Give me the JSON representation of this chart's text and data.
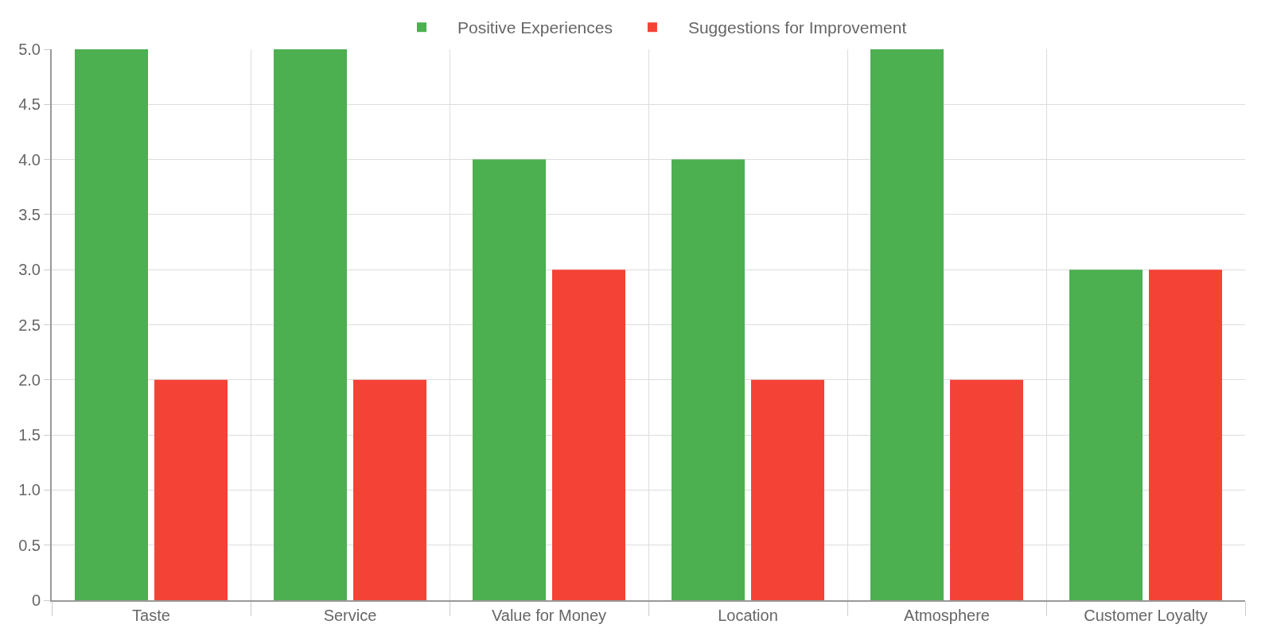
{
  "chart_data": {
    "type": "bar",
    "categories": [
      "Taste",
      "Service",
      "Value for Money",
      "Location",
      "Atmosphere",
      "Customer Loyalty"
    ],
    "series": [
      {
        "name": "Positive Experiences",
        "color": "#4caf50",
        "values": [
          5,
          5,
          4,
          4,
          5,
          3
        ]
      },
      {
        "name": "Suggestions for Improvement",
        "color": "#f44336",
        "values": [
          2,
          2,
          3,
          2,
          2,
          3
        ]
      }
    ],
    "ylim": [
      0,
      5
    ],
    "yticks": [
      0,
      {
        "value": 0.5,
        "label": "0.5"
      },
      {
        "value": 1,
        "label": "1.0"
      },
      {
        "value": 1.5,
        "label": "1.5"
      },
      {
        "value": 2,
        "label": "2.0"
      },
      {
        "value": 2.5,
        "label": "2.5"
      },
      {
        "value": 3,
        "label": "3.0"
      },
      {
        "value": 3.5,
        "label": "3.5"
      },
      {
        "value": 4,
        "label": "4.0"
      },
      {
        "value": 4.5,
        "label": "4.5"
      },
      {
        "value": 5,
        "label": "5.0"
      }
    ],
    "grid": true,
    "legend": "top"
  }
}
